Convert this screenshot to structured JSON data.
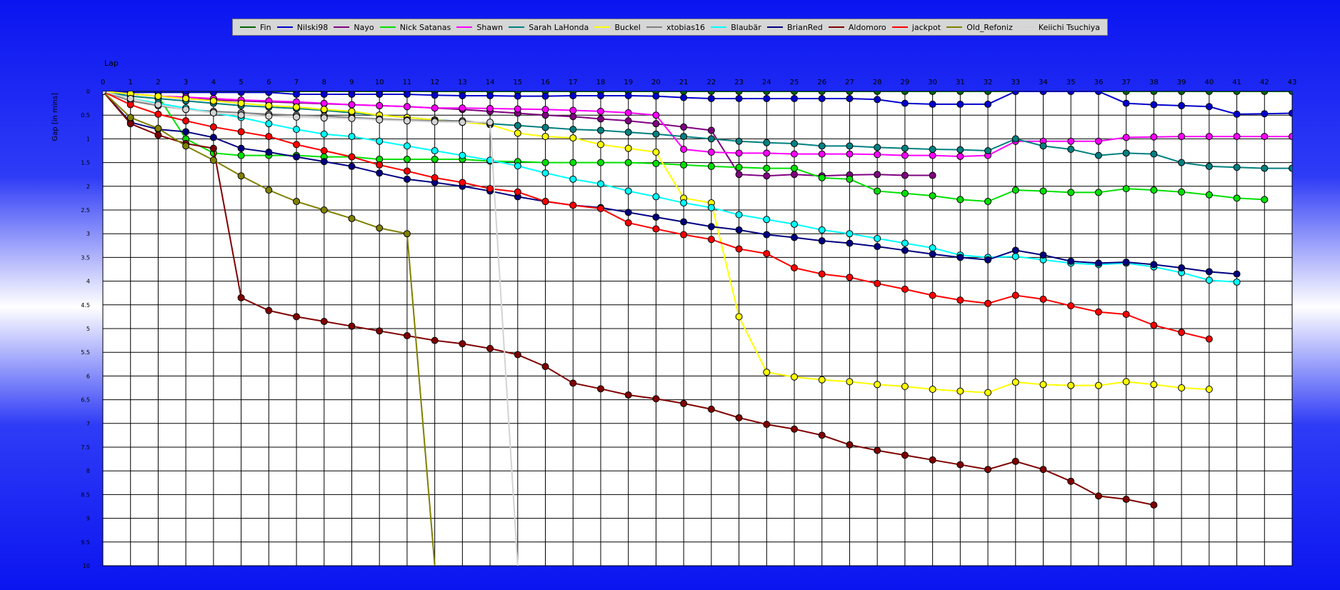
{
  "chart_data": {
    "type": "line",
    "xlabel": "Lap",
    "ylabel": "Gap [in mins]",
    "xlim": [
      0,
      43
    ],
    "ylim": [
      0,
      10
    ],
    "x_ticks": [
      0,
      1,
      2,
      3,
      4,
      5,
      6,
      7,
      8,
      9,
      10,
      11,
      12,
      13,
      14,
      15,
      16,
      17,
      18,
      19,
      20,
      21,
      22,
      23,
      24,
      25,
      26,
      27,
      28,
      29,
      30,
      31,
      32,
      33,
      34,
      35,
      36,
      37,
      38,
      39,
      40,
      41,
      42,
      43
    ],
    "y_ticks": [
      {
        "v": 0,
        "label": "0"
      },
      {
        "v": 0.5,
        "label": "0.5"
      },
      {
        "v": 1,
        "label": "1"
      },
      {
        "v": 1.5,
        "label": "1.5"
      },
      {
        "v": 2,
        "label": "2"
      },
      {
        "v": 2.5,
        "label": "2.5"
      },
      {
        "v": 3,
        "label": "3"
      },
      {
        "v": 3.5,
        "label": "3.5"
      },
      {
        "v": 4,
        "label": "4"
      },
      {
        "v": 4.5,
        "label": "4.5"
      },
      {
        "v": 5,
        "label": "5"
      },
      {
        "v": 5.5,
        "label": "5.5"
      },
      {
        "v": 6,
        "label": "6"
      },
      {
        "v": 6.5,
        "label": "6.5"
      },
      {
        "v": 7,
        "label": "7"
      },
      {
        "v": 7.5,
        "label": "7.5"
      },
      {
        "v": 8,
        "label": "8"
      },
      {
        "v": 8.5,
        "label": "8.5"
      },
      {
        "v": 9,
        "label": "9"
      },
      {
        "v": 9.5,
        "label": "9.5"
      },
      {
        "v": 10,
        "label": "10"
      }
    ],
    "y_inverted": true,
    "grid": true,
    "legend": "top",
    "series": [
      {
        "name": "Fin",
        "color": "#006400",
        "values": [
          0,
          0,
          0,
          0,
          0,
          0,
          0,
          0,
          0,
          0,
          0,
          0,
          0,
          0,
          0,
          0,
          0,
          0,
          0,
          0,
          0,
          0,
          0,
          0,
          0,
          0,
          0,
          0,
          0,
          0,
          0,
          0,
          0,
          0,
          0,
          0,
          0,
          0,
          0,
          0,
          0,
          0,
          0,
          0
        ]
      },
      {
        "name": "Nilski98",
        "color": "#0000cd",
        "values": [
          0,
          0.02,
          0.02,
          0.02,
          0.02,
          0.02,
          0.02,
          0.06,
          0.06,
          0.06,
          0.06,
          0.06,
          0.08,
          0.09,
          0.09,
          0.1,
          0.1,
          0.09,
          0.09,
          0.09,
          0.1,
          0.13,
          0.15,
          0.15,
          0.15,
          0.15,
          0.15,
          0.15,
          0.17,
          0.25,
          0.27,
          0.27,
          0.27,
          0,
          0,
          0,
          0,
          0.25,
          0.28,
          0.3,
          0.32,
          0.48,
          0.47,
          0.46
        ]
      },
      {
        "name": "Nayo",
        "color": "#800080",
        "values": [
          0,
          0.05,
          0.1,
          0.15,
          0.18,
          0.2,
          0.22,
          0.24,
          0.26,
          0.28,
          0.3,
          0.32,
          0.35,
          0.38,
          0.42,
          0.46,
          0.5,
          0.53,
          0.58,
          0.62,
          0.68,
          0.75,
          0.82,
          1.75,
          1.78,
          1.75,
          1.78,
          1.76,
          1.75,
          1.77,
          1.77
        ]
      },
      {
        "name": "Nick Satanas",
        "color": "#00e000",
        "values": [
          0,
          0.05,
          0.1,
          1.0,
          1.3,
          1.35,
          1.35,
          1.35,
          1.38,
          1.38,
          1.43,
          1.43,
          1.43,
          1.43,
          1.47,
          1.48,
          1.5,
          1.5,
          1.5,
          1.5,
          1.52,
          1.55,
          1.58,
          1.6,
          1.62,
          1.62,
          1.82,
          1.85,
          2.1,
          2.15,
          2.2,
          2.28,
          2.32,
          2.08,
          2.1,
          2.13,
          2.13,
          2.05,
          2.08,
          2.12,
          2.18,
          2.25,
          2.28
        ]
      },
      {
        "name": "Shawn",
        "color": "#ff00ff",
        "values": [
          0,
          0.05,
          0.1,
          0.12,
          0.15,
          0.18,
          0.2,
          0.22,
          0.25,
          0.28,
          0.3,
          0.32,
          0.35,
          0.35,
          0.36,
          0.37,
          0.38,
          0.4,
          0.42,
          0.45,
          0.5,
          1.22,
          1.28,
          1.3,
          1.3,
          1.32,
          1.32,
          1.32,
          1.33,
          1.35,
          1.35,
          1.37,
          1.35,
          1.05,
          1.05,
          1.05,
          1.05,
          0.97,
          0.96,
          0.95,
          0.95,
          0.95,
          0.95,
          0.95
        ]
      },
      {
        "name": "Sarah LaHonda",
        "color": "#008080",
        "values": [
          0,
          0.1,
          0.15,
          0.2,
          0.25,
          0.3,
          0.33,
          0.36,
          0.4,
          0.45,
          0.5,
          0.55,
          0.6,
          0.63,
          0.68,
          0.72,
          0.76,
          0.8,
          0.82,
          0.86,
          0.9,
          0.95,
          1.0,
          1.05,
          1.08,
          1.1,
          1.15,
          1.15,
          1.18,
          1.2,
          1.22,
          1.23,
          1.25,
          1.0,
          1.15,
          1.22,
          1.35,
          1.3,
          1.32,
          1.5,
          1.58,
          1.6,
          1.62,
          1.62
        ]
      },
      {
        "name": "Buckel",
        "color": "#ffff00",
        "values": [
          0,
          0.05,
          0.1,
          0.15,
          0.2,
          0.25,
          0.3,
          0.33,
          0.38,
          0.42,
          0.5,
          0.55,
          0.6,
          0.65,
          0.7,
          0.88,
          0.95,
          0.98,
          1.12,
          1.2,
          1.28,
          2.25,
          2.35,
          4.75,
          5.92,
          6.02,
          6.08,
          6.12,
          6.18,
          6.22,
          6.28,
          6.32,
          6.35,
          6.13,
          6.18,
          6.2,
          6.2,
          6.12,
          6.18,
          6.25,
          6.28
        ]
      },
      {
        "name": "xtobias16",
        "color": "#808080",
        "values": [
          0,
          0.2,
          0.3,
          0.38,
          0.42,
          0.45,
          0.48,
          0.5,
          0.52,
          0.55,
          0.58,
          0.6,
          0.62,
          0.62,
          0.68
        ]
      },
      {
        "name": "Blaubär",
        "color": "#00ffff",
        "values": [
          0,
          0.15,
          0.25,
          0.35,
          0.45,
          0.55,
          0.68,
          0.8,
          0.9,
          0.95,
          1.05,
          1.15,
          1.25,
          1.35,
          1.45,
          1.57,
          1.72,
          1.85,
          1.95,
          2.1,
          2.22,
          2.35,
          2.45,
          2.6,
          2.7,
          2.8,
          2.92,
          3.0,
          3.1,
          3.2,
          3.3,
          3.45,
          3.5,
          3.48,
          3.55,
          3.62,
          3.65,
          3.62,
          3.7,
          3.82,
          3.98,
          4.02
        ]
      },
      {
        "name": "BrianRed",
        "color": "#000080",
        "values": [
          0,
          0.65,
          0.8,
          0.85,
          0.97,
          1.2,
          1.28,
          1.38,
          1.48,
          1.58,
          1.72,
          1.85,
          1.92,
          2.0,
          2.1,
          2.22,
          2.32,
          2.4,
          2.45,
          2.55,
          2.65,
          2.75,
          2.85,
          2.92,
          3.02,
          3.08,
          3.15,
          3.2,
          3.27,
          3.35,
          3.43,
          3.5,
          3.55,
          3.35,
          3.45,
          3.58,
          3.62,
          3.6,
          3.65,
          3.72,
          3.8,
          3.85
        ]
      },
      {
        "name": "Aldomoro",
        "color": "#800000",
        "values": [
          0,
          0.68,
          0.92,
          1.1,
          1.2,
          4.35,
          4.62,
          4.75,
          4.85,
          4.95,
          5.05,
          5.15,
          5.25,
          5.32,
          5.42,
          5.55,
          5.8,
          6.15,
          6.27,
          6.4,
          6.48,
          6.58,
          6.7,
          6.88,
          7.02,
          7.12,
          7.25,
          7.45,
          7.57,
          7.67,
          7.77,
          7.87,
          7.97,
          7.8,
          7.97,
          8.22,
          8.53,
          8.6,
          8.72
        ]
      },
      {
        "name": "jackpot",
        "color": "#ff0000",
        "values": [
          0,
          0.28,
          0.48,
          0.62,
          0.75,
          0.85,
          0.95,
          1.12,
          1.25,
          1.38,
          1.55,
          1.68,
          1.82,
          1.92,
          2.05,
          2.12,
          2.32,
          2.4,
          2.47,
          2.77,
          2.9,
          3.02,
          3.12,
          3.32,
          3.42,
          3.72,
          3.85,
          3.92,
          4.05,
          4.17,
          4.3,
          4.4,
          4.47,
          4.3,
          4.38,
          4.52,
          4.65,
          4.7,
          4.93,
          5.08,
          5.22
        ]
      },
      {
        "name": "Old_Refoniz",
        "color": "#808000",
        "values": [
          0,
          0.55,
          0.78,
          1.15,
          1.45,
          1.78,
          2.08,
          2.32,
          2.5,
          2.68,
          2.88,
          3.0,
          10
        ]
      },
      {
        "name": "Keiichi Tsuchiya",
        "color": "#d3d3d3",
        "values": [
          0,
          0.15,
          0.28,
          0.38,
          0.45,
          0.5,
          0.52,
          0.54,
          0.56,
          0.57,
          0.6,
          0.62,
          0.64,
          0.65,
          0.65,
          10
        ]
      }
    ]
  }
}
